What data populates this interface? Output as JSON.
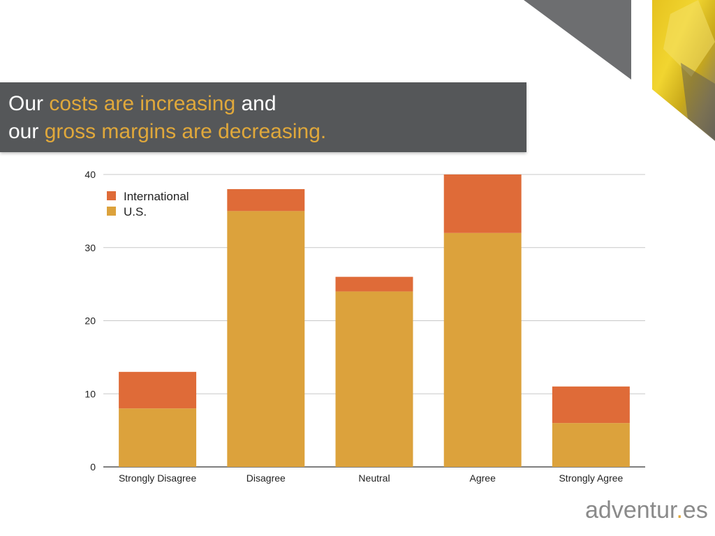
{
  "title": {
    "line1_pre": "Our ",
    "line1_hl": "costs are increasing",
    "line1_post": " and",
    "line2_pre": "our ",
    "line2_hl": "gross margins are decreasing."
  },
  "logo": {
    "pre": "adventur",
    "dot": ".",
    "post": "es"
  },
  "colors": {
    "band": "#555759",
    "accent": "#e0a83b",
    "us": "#dca23c",
    "international": "#df6b38",
    "grid": "#c8c8c8",
    "axis": "#333333",
    "text": "#222222"
  },
  "chart_data": {
    "type": "bar",
    "stacked": true,
    "title": "",
    "xlabel": "",
    "ylabel": "",
    "categories": [
      "Strongly Disagree",
      "Disagree",
      "Neutral",
      "Agree",
      "Strongly Agree"
    ],
    "series": [
      {
        "name": "U.S.",
        "values": [
          8,
          35,
          24,
          32,
          6
        ]
      },
      {
        "name": "International",
        "values": [
          5,
          3,
          2,
          8,
          5
        ]
      }
    ],
    "legend": [
      "International",
      "U.S."
    ],
    "legend_position": "top-left",
    "ylim": [
      0,
      40
    ],
    "yticks": [
      0,
      10,
      20,
      30,
      40
    ],
    "grid": true
  }
}
